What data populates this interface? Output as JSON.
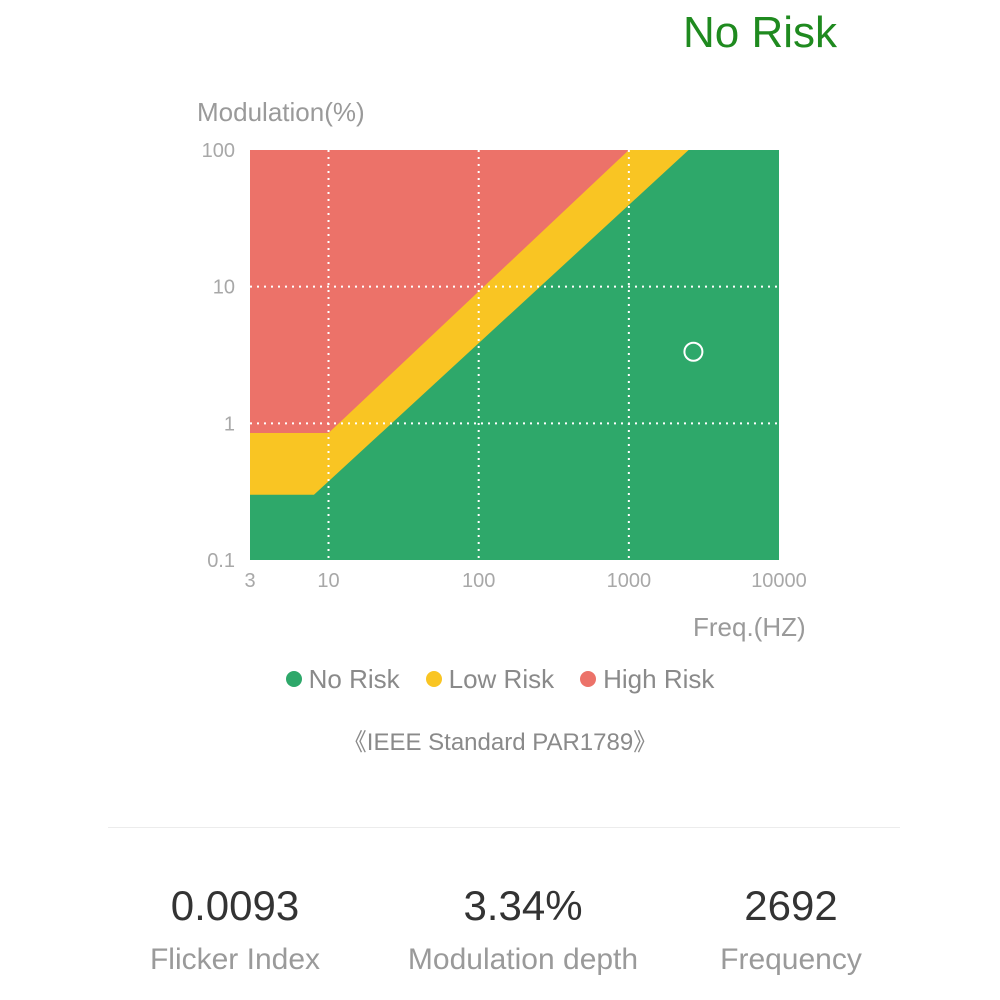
{
  "header": {
    "risk_status": "No Risk",
    "risk_color": "#1f8a1f"
  },
  "chart_data": {
    "type": "area",
    "xlabel": "Freq.(HZ)",
    "ylabel": "Modulation(%)",
    "x_scale": "log",
    "y_scale": "log",
    "xlim": [
      3,
      10000
    ],
    "ylim": [
      0.1,
      100
    ],
    "x_ticks": [
      3,
      10,
      100,
      1000,
      10000
    ],
    "x_tick_labels": [
      "3",
      "10",
      "100",
      "1000",
      "10000"
    ],
    "y_ticks": [
      0.1,
      1,
      10,
      100
    ],
    "y_tick_labels": [
      "0.1",
      "1",
      "10",
      "100"
    ],
    "grid": true,
    "legend_position": "bottom",
    "regions": [
      {
        "name": "No Risk",
        "color": "#2ea86a",
        "boundary": [
          [
            3,
            0.3
          ],
          [
            8,
            0.3
          ],
          [
            2500,
            100
          ]
        ]
      },
      {
        "name": "Low Risk",
        "color": "#f9c523",
        "boundary": [
          [
            3,
            0.85
          ],
          [
            10,
            0.85
          ],
          [
            1000,
            100
          ]
        ]
      },
      {
        "name": "High Risk",
        "color": "#ec7269"
      }
    ],
    "measurement": {
      "frequency": 2692,
      "modulation": 3.34
    }
  },
  "legend": {
    "items": [
      {
        "label": "No Risk",
        "color": "#2ea86a"
      },
      {
        "label": "Low Risk",
        "color": "#f9c523"
      },
      {
        "label": "High Risk",
        "color": "#ec7269"
      }
    ]
  },
  "standard": "《IEEE Standard PAR1789》",
  "stats": [
    {
      "value": "0.0093",
      "label": "Flicker Index"
    },
    {
      "value": "3.34%",
      "label": "Modulation depth"
    },
    {
      "value": "2692",
      "label": "Frequency"
    }
  ]
}
